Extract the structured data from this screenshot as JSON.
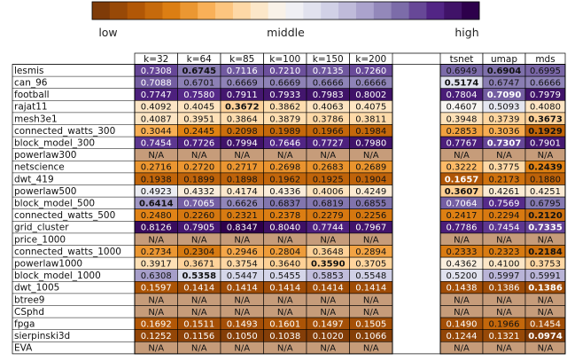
{
  "chart_data": {
    "type": "heatmap",
    "colorbar": {
      "labels": [
        "low",
        "middle",
        "high"
      ],
      "colors": [
        "#7f3b08",
        "#b35806",
        "#e08214",
        "#fdb863",
        "#fee0b6",
        "#f7f7f7",
        "#d8daeb",
        "#b2abd2",
        "#8073ac",
        "#542788",
        "#2d004b"
      ]
    },
    "columns_left": [
      "k=32",
      "k=64",
      "k=85",
      "k=100",
      "k=150",
      "k=200"
    ],
    "columns_right": [
      "tsnet",
      "umap",
      "mds"
    ],
    "na_label": "N/A",
    "na_color": "#c69c7a",
    "rows": [
      {
        "name": "lesmis",
        "values": [
          0.7308,
          0.6745,
          0.7116,
          0.721,
          0.7135,
          0.726
        ],
        "right": [
          0.6949,
          0.6904,
          0.6995
        ],
        "bold_left": 1,
        "bold_right": 1
      },
      {
        "name": "can_96",
        "values": [
          0.7088,
          0.6701,
          0.6669,
          0.6669,
          0.6666,
          0.6666
        ],
        "right": [
          0.5174,
          0.6747,
          0.6666
        ],
        "bold_left": -1,
        "bold_right": 0
      },
      {
        "name": "football",
        "values": [
          0.7747,
          0.758,
          0.7911,
          0.7933,
          0.7983,
          0.8002
        ],
        "right": [
          0.7804,
          0.709,
          0.7979
        ],
        "bold_left": -1,
        "bold_right": 1
      },
      {
        "name": "rajat11",
        "values": [
          0.4092,
          0.4045,
          0.3672,
          0.3862,
          0.4063,
          0.4075
        ],
        "right": [
          0.4607,
          0.5093,
          0.408
        ],
        "bold_left": 2,
        "bold_right": -1
      },
      {
        "name": "mesh3e1",
        "values": [
          0.4087,
          0.3951,
          0.3864,
          0.3879,
          0.3786,
          0.3811
        ],
        "right": [
          0.3948,
          0.3739,
          0.3673
        ],
        "bold_left": -1,
        "bold_right": 2
      },
      {
        "name": "connected_watts_300",
        "values": [
          0.3044,
          0.2445,
          0.2098,
          0.1989,
          0.1966,
          0.1984
        ],
        "right": [
          0.2853,
          0.3036,
          0.1929
        ],
        "bold_left": -1,
        "bold_right": 2
      },
      {
        "name": "block_model_300",
        "values": [
          0.7454,
          0.7726,
          0.7994,
          0.7646,
          0.7727,
          0.798
        ],
        "right": [
          0.7767,
          0.7307,
          0.7901
        ],
        "bold_left": -1,
        "bold_right": 1
      },
      {
        "name": "powerlaw300",
        "values": [
          null,
          null,
          null,
          null,
          null,
          null
        ],
        "right": [
          null,
          null,
          null
        ],
        "bold_left": -1,
        "bold_right": -1
      },
      {
        "name": "netscience",
        "values": [
          0.2716,
          0.272,
          0.2717,
          0.2698,
          0.2683,
          0.2689
        ],
        "right": [
          0.3222,
          0.3775,
          0.2439
        ],
        "bold_left": -1,
        "bold_right": 2
      },
      {
        "name": "dwt_419",
        "values": [
          0.1938,
          0.1899,
          0.1898,
          0.1962,
          0.1925,
          0.1904
        ],
        "right": [
          0.1657,
          0.2173,
          0.188
        ],
        "bold_left": -1,
        "bold_right": 0
      },
      {
        "name": "powerlaw500",
        "values": [
          0.4923,
          0.4332,
          0.4174,
          0.4336,
          0.4006,
          0.4249
        ],
        "right": [
          0.3607,
          0.4261,
          0.4251
        ],
        "bold_left": -1,
        "bold_right": 0
      },
      {
        "name": "block_model_500",
        "values": [
          0.6414,
          0.7065,
          0.6626,
          0.6837,
          0.6819,
          0.6855
        ],
        "right": [
          0.7064,
          0.7569,
          0.6795
        ],
        "bold_left": 0,
        "bold_right": -1
      },
      {
        "name": "connected_watts_500",
        "values": [
          0.248,
          0.226,
          0.2321,
          0.2378,
          0.2279,
          0.2256
        ],
        "right": [
          0.2417,
          0.2294,
          0.212
        ],
        "bold_left": -1,
        "bold_right": 2
      },
      {
        "name": "grid_cluster",
        "values": [
          0.8126,
          0.7905,
          0.8347,
          0.804,
          0.7744,
          0.7967
        ],
        "right": [
          0.7786,
          0.7454,
          0.7335
        ],
        "bold_left": -1,
        "bold_right": 2
      },
      {
        "name": "price_1000",
        "values": [
          null,
          null,
          null,
          null,
          null,
          null
        ],
        "right": [
          null,
          null,
          null
        ],
        "bold_left": -1,
        "bold_right": -1
      },
      {
        "name": "connected_watts_1000",
        "values": [
          0.2734,
          0.2304,
          0.2946,
          0.2804,
          0.3648,
          0.2894
        ],
        "right": [
          0.2333,
          0.2323,
          0.2184
        ],
        "bold_left": -1,
        "bold_right": 2
      },
      {
        "name": "powerlaw1000",
        "values": [
          0.3917,
          0.3671,
          0.3754,
          0.364,
          0.359,
          0.3705
        ],
        "right": [
          0.4362,
          0.41,
          0.3753
        ],
        "bold_left": 4,
        "bold_right": -1
      },
      {
        "name": "block_model_1000",
        "values": [
          0.6308,
          0.5358,
          0.5447,
          0.5455,
          0.5853,
          0.5548
        ],
        "right": [
          0.52,
          0.5997,
          0.5991
        ],
        "bold_left": 1,
        "bold_right": -1
      },
      {
        "name": "dwt_1005",
        "values": [
          0.1597,
          0.1414,
          0.1414,
          0.1414,
          0.1414,
          0.1414
        ],
        "right": [
          0.1438,
          0.1386,
          0.1386
        ],
        "bold_left": -1,
        "bold_right": 2
      },
      {
        "name": "btree9",
        "values": [
          null,
          null,
          null,
          null,
          null,
          null
        ],
        "right": [
          null,
          null,
          null
        ],
        "bold_left": -1,
        "bold_right": -1
      },
      {
        "name": "CSphd",
        "values": [
          null,
          null,
          null,
          null,
          null,
          null
        ],
        "right": [
          null,
          null,
          null
        ],
        "bold_left": -1,
        "bold_right": -1
      },
      {
        "name": "fpga",
        "values": [
          0.1692,
          0.1511,
          0.1493,
          0.1601,
          0.1497,
          0.1505
        ],
        "right": [
          0.149,
          0.1966,
          0.1454
        ],
        "bold_left": -1,
        "bold_right": -1
      },
      {
        "name": "sierpinski3d",
        "values": [
          0.1252,
          0.1156,
          0.105,
          0.1038,
          0.102,
          0.1066
        ],
        "right": [
          0.1244,
          0.1321,
          0.0974
        ],
        "bold_left": -1,
        "bold_right": 2
      },
      {
        "name": "EVA",
        "values": [
          null,
          null,
          null,
          null,
          null,
          null
        ],
        "right": [
          null,
          null,
          null
        ],
        "bold_left": -1,
        "bold_right": -1
      }
    ]
  }
}
